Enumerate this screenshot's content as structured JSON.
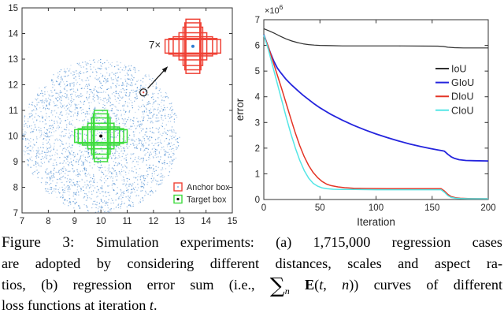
{
  "figure": {
    "caption": {
      "lines": [
        {
          "last": false,
          "segments": [
            {
              "text": "Figure 3: ",
              "style": "figlabel"
            },
            {
              "text": "Simulation experiments: (a) 1,715,000 regression cases",
              "style": "r"
            }
          ]
        },
        {
          "last": false,
          "segments": [
            {
              "text": "are adopted by considering different distances, scales and aspect ra-",
              "style": "r"
            }
          ]
        },
        {
          "last": false,
          "segments": [
            {
              "text": "tios, (b) regression error sum (i.e., ",
              "style": "r"
            },
            {
              "text": "∑",
              "style": "sum"
            },
            {
              "text": "n",
              "style": "sub"
            },
            {
              "text": " ",
              "style": "r"
            },
            {
              "text": "E",
              "style": "b"
            },
            {
              "text": "(",
              "style": "r"
            },
            {
              "text": "t",
              "style": "i"
            },
            {
              "text": ", ",
              "style": "r"
            },
            {
              "text": "n",
              "style": "i"
            },
            {
              "text": ")) curves of different",
              "style": "r"
            }
          ]
        },
        {
          "last": true,
          "segments": [
            {
              "text": "loss functions at iteration ",
              "style": "r"
            },
            {
              "text": "t",
              "style": "i"
            },
            {
              "text": ".",
              "style": "r"
            }
          ]
        }
      ]
    }
  },
  "chart_data": [
    {
      "type": "scatter",
      "panel": "a",
      "xlim": [
        7,
        15
      ],
      "ylim": [
        7,
        15
      ],
      "xticks": [
        7,
        8,
        9,
        10,
        11,
        12,
        13,
        14,
        15
      ],
      "yticks": [
        7,
        8,
        9,
        10,
        11,
        12,
        13,
        14,
        15
      ],
      "grid": false,
      "axis_color": "#333333",
      "point_cloud": {
        "center": [
          10,
          10
        ],
        "radius": 3,
        "count": 2600,
        "color": "#4f8fd2",
        "description": "uniformly scattered regression-case center points in a circle of radius 3"
      },
      "target_boxes": {
        "center": [
          10,
          10
        ],
        "aspect_ratios": [
          4,
          3,
          2,
          1,
          0.5,
          0.3333,
          0.25
        ],
        "area": 1.0,
        "color": "#3ddc3d",
        "center_dot_color": "#000000"
      },
      "anchor_boxes": {
        "center": [
          13.5,
          13.5
        ],
        "aspect_ratios": [
          4,
          3,
          2,
          1,
          0.5,
          0.3333,
          0.25
        ],
        "area": 1.12,
        "color": "#ef4135",
        "center_dot_color": "#2f7bd1",
        "count_label": "7×",
        "count_label_pos": [
          12.28,
          13.42
        ]
      },
      "annotation": {
        "circle_center": [
          11.62,
          11.7
        ],
        "circle_dot_color": "#ef4135",
        "arrow_from": [
          11.78,
          11.86
        ],
        "arrow_to": [
          12.55,
          12.72
        ],
        "color": "#1a1a1a"
      },
      "legend": {
        "position": "bottom-right",
        "entries": [
          {
            "label": "Anchor box",
            "marker": "red-box-blue-dot",
            "box_color": "#ef4135",
            "dot_color": "#9cc4ea"
          },
          {
            "label": "Target box",
            "marker": "green-box-black-dot",
            "box_color": "#3ddc3d",
            "dot_color": "#000000"
          }
        ]
      }
    },
    {
      "type": "line",
      "panel": "b",
      "xlabel": "Iteration",
      "ylabel": "error",
      "y_offset_label": {
        "base": "×10",
        "exponent": "6"
      },
      "xlim": [
        0,
        200
      ],
      "ylim": [
        0,
        7
      ],
      "xticks": [
        0,
        50,
        100,
        150,
        200
      ],
      "yticks": [
        0,
        1,
        2,
        3,
        4,
        5,
        6,
        7
      ],
      "y_unit": 1000000,
      "grid": false,
      "axis_color": "#333333",
      "legend_position": "right-upper",
      "series": [
        {
          "name": "IoU",
          "color": "#2f2f2f",
          "points": [
            [
              0,
              6.65
            ],
            [
              5,
              6.56
            ],
            [
              10,
              6.46
            ],
            [
              15,
              6.35
            ],
            [
              20,
              6.25
            ],
            [
              25,
              6.17
            ],
            [
              30,
              6.11
            ],
            [
              35,
              6.06
            ],
            [
              40,
              6.03
            ],
            [
              45,
              6.01
            ],
            [
              50,
              6.0
            ],
            [
              60,
              5.99
            ],
            [
              70,
              5.98
            ],
            [
              90,
              5.98
            ],
            [
              120,
              5.98
            ],
            [
              155,
              5.97
            ],
            [
              160,
              5.96
            ],
            [
              164,
              5.93
            ],
            [
              170,
              5.91
            ],
            [
              178,
              5.9
            ],
            [
              200,
              5.9
            ]
          ]
        },
        {
          "name": "GIoU",
          "color": "#2424dd",
          "points": [
            [
              0,
              6.42
            ],
            [
              3,
              6.05
            ],
            [
              6,
              5.7
            ],
            [
              9,
              5.38
            ],
            [
              12,
              5.12
            ],
            [
              15,
              4.94
            ],
            [
              20,
              4.67
            ],
            [
              25,
              4.45
            ],
            [
              30,
              4.25
            ],
            [
              35,
              4.06
            ],
            [
              40,
              3.89
            ],
            [
              45,
              3.72
            ],
            [
              50,
              3.57
            ],
            [
              55,
              3.44
            ],
            [
              60,
              3.31
            ],
            [
              70,
              3.09
            ],
            [
              80,
              2.89
            ],
            [
              90,
              2.71
            ],
            [
              100,
              2.55
            ],
            [
              110,
              2.41
            ],
            [
              120,
              2.28
            ],
            [
              130,
              2.16
            ],
            [
              140,
              2.06
            ],
            [
              148,
              1.99
            ],
            [
              155,
              1.93
            ],
            [
              159,
              1.9
            ],
            [
              161,
              1.88
            ],
            [
              164,
              1.76
            ],
            [
              167,
              1.66
            ],
            [
              170,
              1.6
            ],
            [
              174,
              1.55
            ],
            [
              180,
              1.52
            ],
            [
              188,
              1.51
            ],
            [
              200,
              1.5
            ]
          ]
        },
        {
          "name": "DIoU",
          "color": "#e43425",
          "points": [
            [
              0,
              6.4
            ],
            [
              4,
              5.95
            ],
            [
              8,
              5.4
            ],
            [
              12,
              4.85
            ],
            [
              16,
              4.3
            ],
            [
              20,
              3.73
            ],
            [
              24,
              3.16
            ],
            [
              28,
              2.6
            ],
            [
              32,
              2.1
            ],
            [
              36,
              1.67
            ],
            [
              40,
              1.32
            ],
            [
              44,
              1.05
            ],
            [
              48,
              0.85
            ],
            [
              52,
              0.7
            ],
            [
              56,
              0.6
            ],
            [
              60,
              0.54
            ],
            [
              66,
              0.49
            ],
            [
              72,
              0.46
            ],
            [
              80,
              0.44
            ],
            [
              90,
              0.43
            ],
            [
              110,
              0.42
            ],
            [
              140,
              0.42
            ],
            [
              158,
              0.42
            ],
            [
              161,
              0.33
            ],
            [
              164,
              0.2
            ],
            [
              167,
              0.11
            ],
            [
              171,
              0.07
            ],
            [
              175,
              0.05
            ],
            [
              182,
              0.04
            ],
            [
              200,
              0.03
            ]
          ]
        },
        {
          "name": "CIoU",
          "color": "#55e6e6",
          "points": [
            [
              0,
              6.4
            ],
            [
              4,
              5.85
            ],
            [
              8,
              5.18
            ],
            [
              12,
              4.52
            ],
            [
              16,
              3.86
            ],
            [
              20,
              3.2
            ],
            [
              24,
              2.58
            ],
            [
              28,
              2.02
            ],
            [
              32,
              1.53
            ],
            [
              36,
              1.13
            ],
            [
              40,
              0.83
            ],
            [
              44,
              0.63
            ],
            [
              48,
              0.52
            ],
            [
              52,
              0.45
            ],
            [
              56,
              0.42
            ],
            [
              62,
              0.4
            ],
            [
              70,
              0.39
            ],
            [
              80,
              0.39
            ],
            [
              100,
              0.38
            ],
            [
              140,
              0.38
            ],
            [
              158,
              0.38
            ],
            [
              161,
              0.28
            ],
            [
              164,
              0.15
            ],
            [
              167,
              0.08
            ],
            [
              171,
              0.05
            ],
            [
              175,
              0.04
            ],
            [
              182,
              0.03
            ],
            [
              200,
              0.03
            ]
          ]
        }
      ]
    }
  ]
}
